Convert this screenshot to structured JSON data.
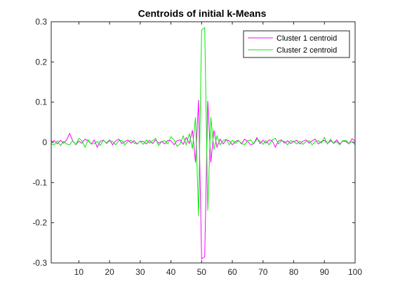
{
  "chart_data": {
    "type": "line",
    "title": "Centroids of initial k-Means",
    "xlabel": "",
    "ylabel": "",
    "xlim": [
      1,
      100
    ],
    "ylim": [
      -0.3,
      0.3
    ],
    "xticks": [
      10,
      20,
      30,
      40,
      50,
      60,
      70,
      80,
      90,
      100
    ],
    "xtick_labels": [
      "10",
      "20",
      "30",
      "40",
      "50",
      "60",
      "70",
      "80",
      "90",
      "100"
    ],
    "yticks": [
      -0.3,
      -0.2,
      -0.1,
      0,
      0.1,
      0.2,
      0.3
    ],
    "ytick_labels": [
      "-0.3",
      "-0.2",
      "-0.1",
      "0",
      "0.1",
      "0.2",
      "0.3"
    ],
    "grid": false,
    "legend_position": "top-right",
    "series": [
      {
        "name": "Cluster 1 centroid",
        "color": "#ff00ff",
        "x": [
          1,
          2,
          3,
          4,
          5,
          6,
          7,
          8,
          9,
          10,
          11,
          12,
          13,
          14,
          15,
          16,
          17,
          18,
          19,
          20,
          21,
          22,
          23,
          24,
          25,
          26,
          27,
          28,
          29,
          30,
          31,
          32,
          33,
          34,
          35,
          36,
          37,
          38,
          39,
          40,
          41,
          42,
          43,
          44,
          45,
          46,
          47,
          48,
          49,
          50,
          51,
          52,
          53,
          54,
          55,
          56,
          57,
          58,
          59,
          60,
          61,
          62,
          63,
          64,
          65,
          66,
          67,
          68,
          69,
          70,
          71,
          72,
          73,
          74,
          75,
          76,
          77,
          78,
          79,
          80,
          81,
          82,
          83,
          84,
          85,
          86,
          87,
          88,
          89,
          90,
          91,
          92,
          93,
          94,
          95,
          96,
          97,
          98,
          99,
          100
        ],
        "values": [
          0.002,
          0.004,
          -0.004,
          0.005,
          -0.002,
          0.006,
          0.022,
          0.004,
          -0.006,
          0.003,
          -0.002,
          0.008,
          0.004,
          -0.004,
          0.006,
          -0.012,
          0.003,
          0.005,
          -0.002,
          0.006,
          -0.006,
          0.004,
          0.008,
          -0.003,
          0.002,
          0.006,
          -0.002,
          0.004,
          -0.004,
          0.003,
          0.002,
          -0.004,
          0.005,
          -0.003,
          0.006,
          -0.002,
          0.002,
          -0.004,
          0.005,
          0.004,
          -0.006,
          0.004,
          0.006,
          -0.005,
          0.012,
          -0.003,
          0.03,
          -0.05,
          0.105,
          -0.29,
          -0.285,
          0.103,
          -0.05,
          0.03,
          -0.012,
          0.008,
          -0.004,
          0.006,
          0.004,
          -0.006,
          0.002,
          0.005,
          -0.004,
          0.008,
          0.002,
          -0.006,
          -0.003,
          0.012,
          -0.003,
          0.005,
          -0.002,
          0.006,
          0.004,
          -0.012,
          0.003,
          0.006,
          -0.002,
          0.004,
          -0.003,
          0.002,
          0.005,
          -0.004,
          0.003,
          0.006,
          -0.002,
          0.004,
          0.008,
          -0.004,
          0.002,
          0.005,
          -0.003,
          0.004,
          -0.002,
          0.006,
          -0.004,
          0.003,
          0.002,
          -0.004,
          0.009,
          0.003
        ]
      },
      {
        "name": "Cluster 2 centroid",
        "color": "#00ee00",
        "x": [
          1,
          2,
          3,
          4,
          5,
          6,
          7,
          8,
          9,
          10,
          11,
          12,
          13,
          14,
          15,
          16,
          17,
          18,
          19,
          20,
          21,
          22,
          23,
          24,
          25,
          26,
          27,
          28,
          29,
          30,
          31,
          32,
          33,
          34,
          35,
          36,
          37,
          38,
          39,
          40,
          41,
          42,
          43,
          44,
          45,
          46,
          47,
          48,
          49,
          50,
          51,
          52,
          53,
          54,
          55,
          56,
          57,
          58,
          59,
          60,
          61,
          62,
          63,
          64,
          65,
          66,
          67,
          68,
          69,
          70,
          71,
          72,
          73,
          74,
          75,
          76,
          77,
          78,
          79,
          80,
          81,
          82,
          83,
          84,
          85,
          86,
          87,
          88,
          89,
          90,
          91,
          92,
          93,
          94,
          95,
          96,
          97,
          98,
          99,
          100
        ],
        "values": [
          -0.004,
          -0.006,
          0.004,
          -0.008,
          0.002,
          -0.004,
          -0.006,
          0.004,
          -0.006,
          0.01,
          0.004,
          -0.012,
          0.006,
          -0.004,
          -0.003,
          0.002,
          -0.008,
          0.006,
          -0.003,
          0.004,
          0.002,
          -0.006,
          0.004,
          0.005,
          -0.006,
          0.002,
          0.005,
          -0.002,
          -0.004,
          0.003,
          -0.005,
          0.006,
          -0.002,
          0.004,
          0.01,
          -0.008,
          0.002,
          0.004,
          -0.004,
          0.014,
          0.006,
          -0.01,
          -0.004,
          0.016,
          -0.006,
          0.022,
          -0.016,
          0.062,
          -0.183,
          0.28,
          0.285,
          -0.17,
          0.062,
          -0.018,
          0.016,
          -0.006,
          0.004,
          0.008,
          -0.006,
          0.005,
          -0.003,
          0.004,
          -0.002,
          -0.006,
          0.004,
          0.006,
          -0.004,
          0.008,
          0.003,
          -0.005,
          0.004,
          -0.006,
          0.006,
          0.01,
          -0.004,
          0.004,
          0.002,
          -0.006,
          0.004,
          0.002,
          -0.004,
          0.003,
          -0.005,
          0.002,
          0.004,
          -0.006,
          0.002,
          0.004,
          -0.002,
          0.012,
          -0.004,
          0.008,
          -0.003,
          0.002,
          -0.006,
          0.004,
          0.005,
          -0.003,
          0.002,
          -0.006
        ]
      }
    ]
  }
}
